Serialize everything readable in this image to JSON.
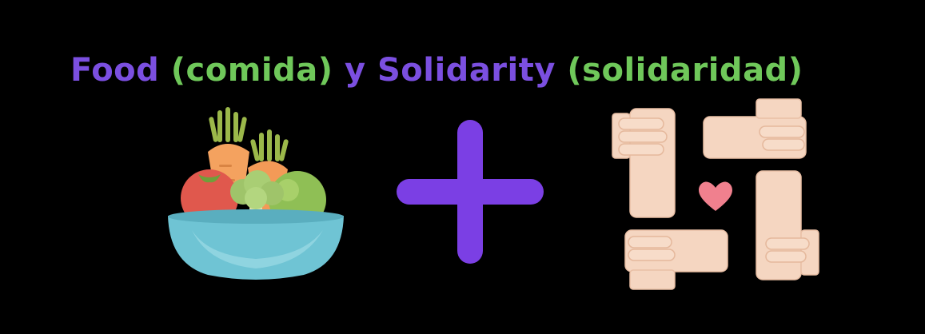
{
  "headline": {
    "word1": "Food",
    "paren1": "(comida)",
    "connector": "y",
    "word2": "Solidarity",
    "paren2": "(solidaridad)"
  },
  "colors": {
    "background": "#000000",
    "english_word": "#7b4fe0",
    "spanish_word": "#6fc85a",
    "plus": "#7b3fe4"
  },
  "icons": {
    "left": "vegetable-bowl-icon",
    "middle": "plus-icon",
    "right": "joined-hands-heart-icon"
  }
}
